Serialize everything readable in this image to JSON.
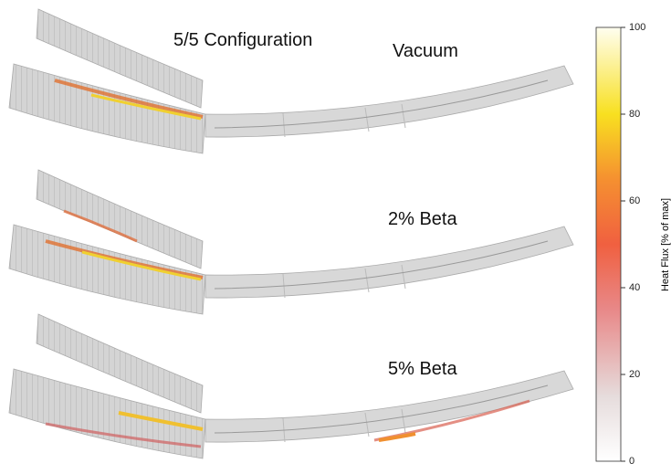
{
  "title": "5/5 Configuration",
  "panels": [
    {
      "label": "Vacuum"
    },
    {
      "label": "2% Beta"
    },
    {
      "label": "5% Beta"
    }
  ],
  "colorbar": {
    "label": "Heat Flux [% of max]",
    "lim": [
      0,
      100
    ],
    "ticks": [
      0,
      20,
      40,
      60,
      80,
      100
    ]
  }
}
